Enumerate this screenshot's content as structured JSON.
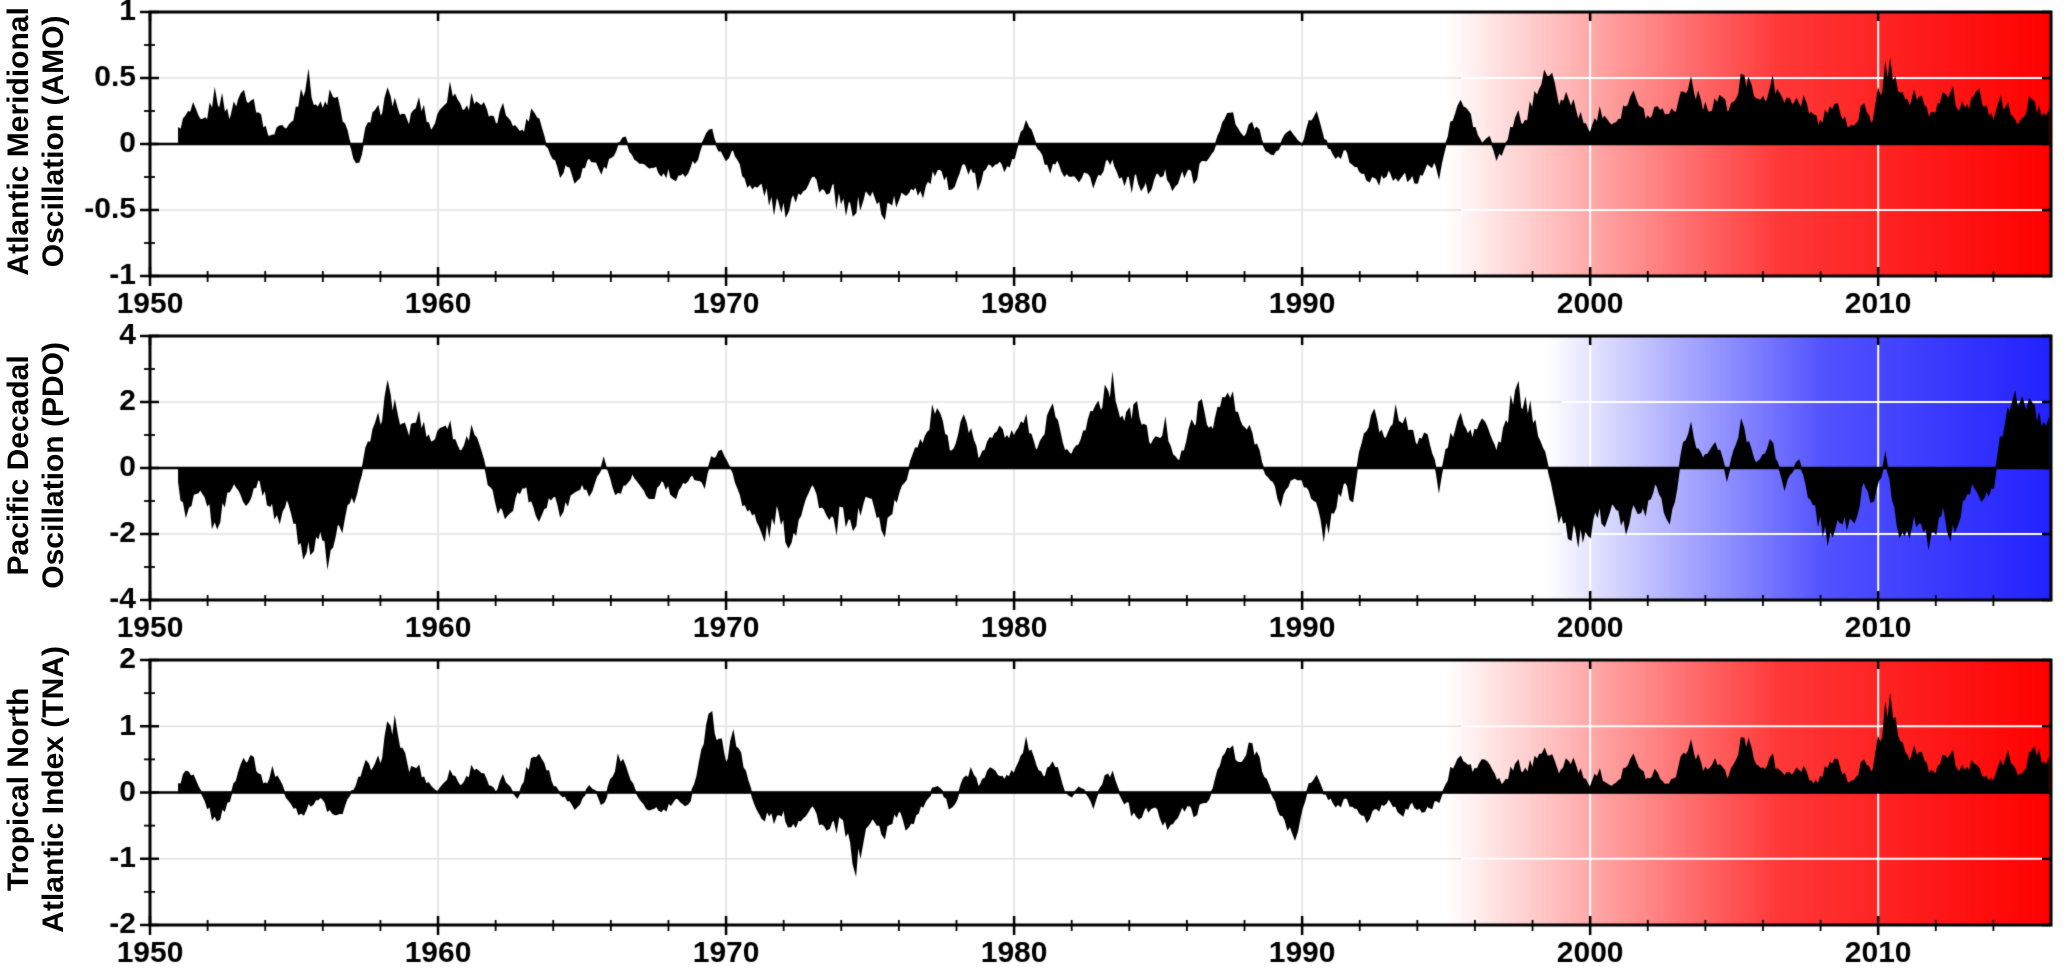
{
  "figure": {
    "background": "#ffffff",
    "axis_color": "#000000",
    "series_color": "#000000",
    "grid_color_light": "#e2e2e2",
    "grid_color_on_shade": "#ffffff"
  },
  "chart_data": [
    {
      "type": "area",
      "title": "",
      "ylabel": "Atlantic Meridional Oscillation (AMO)",
      "ylabel_lines": [
        "Atlantic Meridional",
        "Oscillation (AMO)"
      ],
      "xlabel": "",
      "xlim": [
        1950,
        2016
      ],
      "ylim": [
        -1,
        1
      ],
      "xticks": [
        1950,
        1960,
        1970,
        1980,
        1990,
        2000,
        2010
      ],
      "xtick_labels": [
        "1950",
        "1960",
        "1970",
        "1980",
        "1990",
        "2000",
        "2010"
      ],
      "yticks": [
        -1,
        -0.5,
        0,
        0.5,
        1
      ],
      "ytick_labels": [
        "-1",
        "-0.5",
        "0",
        "0.5",
        "1"
      ],
      "minor_x_step": 2,
      "grid": true,
      "legend": "none",
      "fill_color": "#000000",
      "shade": {
        "color": "#ff0000",
        "start": 1995
      },
      "x_start": 1951.0,
      "x_step": 0.25,
      "values": [
        0.1,
        0.2,
        0.25,
        0.15,
        0.2,
        0.35,
        0.3,
        0.2,
        0.3,
        0.4,
        0.35,
        0.25,
        0.1,
        0.05,
        0.15,
        0.1,
        0.2,
        0.4,
        0.45,
        0.3,
        0.25,
        0.35,
        0.3,
        0.15,
        -0.05,
        -0.15,
        0.1,
        0.2,
        0.25,
        0.35,
        0.3,
        0.2,
        0.15,
        0.3,
        0.25,
        0.1,
        0.2,
        0.35,
        0.4,
        0.3,
        0.25,
        0.35,
        0.3,
        0.2,
        0.15,
        0.25,
        0.2,
        0.1,
        0.1,
        0.25,
        0.2,
        0.0,
        -0.1,
        -0.2,
        -0.15,
        -0.25,
        -0.2,
        -0.1,
        -0.15,
        -0.2,
        -0.1,
        0.0,
        0.05,
        -0.1,
        -0.15,
        -0.2,
        -0.15,
        -0.25,
        -0.2,
        -0.3,
        -0.25,
        -0.15,
        -0.1,
        0.05,
        0.1,
        -0.05,
        -0.1,
        -0.05,
        -0.15,
        -0.3,
        -0.35,
        -0.3,
        -0.4,
        -0.45,
        -0.5,
        -0.4,
        -0.35,
        -0.3,
        -0.25,
        -0.3,
        -0.4,
        -0.35,
        -0.45,
        -0.5,
        -0.45,
        -0.4,
        -0.35,
        -0.45,
        -0.5,
        -0.4,
        -0.45,
        -0.35,
        -0.3,
        -0.35,
        -0.3,
        -0.2,
        -0.25,
        -0.3,
        -0.25,
        -0.15,
        -0.2,
        -0.3,
        -0.2,
        -0.15,
        -0.1,
        -0.2,
        -0.1,
        0.1,
        0.15,
        0.0,
        -0.1,
        -0.2,
        -0.15,
        -0.25,
        -0.3,
        -0.25,
        -0.2,
        -0.3,
        -0.2,
        -0.1,
        -0.15,
        -0.25,
        -0.3,
        -0.25,
        -0.35,
        -0.3,
        -0.25,
        -0.2,
        -0.3,
        -0.25,
        -0.2,
        -0.25,
        -0.15,
        -0.1,
        0.0,
        0.15,
        0.25,
        0.1,
        0.05,
        0.15,
        0.1,
        -0.05,
        -0.1,
        0.0,
        0.1,
        0.05,
        0.0,
        0.15,
        0.2,
        0.05,
        -0.05,
        -0.1,
        -0.05,
        -0.15,
        -0.2,
        -0.25,
        -0.3,
        -0.25,
        -0.2,
        -0.25,
        -0.2,
        -0.3,
        -0.25,
        -0.2,
        -0.15,
        -0.2,
        0.0,
        0.2,
        0.3,
        0.25,
        0.1,
        0.0,
        0.05,
        -0.1,
        -0.05,
        0.1,
        0.2,
        0.15,
        0.3,
        0.5,
        0.55,
        0.4,
        0.3,
        0.35,
        0.25,
        0.15,
        0.1,
        0.2,
        0.25,
        0.15,
        0.2,
        0.3,
        0.35,
        0.25,
        0.2,
        0.25,
        0.3,
        0.2,
        0.3,
        0.4,
        0.45,
        0.35,
        0.25,
        0.3,
        0.35,
        0.25,
        0.3,
        0.45,
        0.5,
        0.4,
        0.3,
        0.4,
        0.45,
        0.35,
        0.25,
        0.35,
        0.3,
        0.2,
        0.15,
        0.25,
        0.3,
        0.2,
        0.1,
        0.2,
        0.25,
        0.15,
        0.35,
        0.5,
        0.55,
        0.45,
        0.3,
        0.35,
        0.3,
        0.2,
        0.25,
        0.35,
        0.4,
        0.3,
        0.25,
        0.3,
        0.35,
        0.25,
        0.2,
        0.3,
        0.25,
        0.15,
        0.2,
        0.3,
        0.25,
        0.2
      ]
    },
    {
      "type": "area",
      "title": "",
      "ylabel": "Pacific Decadal Oscillation (PDO)",
      "ylabel_lines": [
        "Pacific Decadal",
        "Oscillation (PDO)"
      ],
      "xlabel": "",
      "xlim": [
        1950,
        2016
      ],
      "ylim": [
        -4,
        4
      ],
      "xticks": [
        1950,
        1960,
        1970,
        1980,
        1990,
        2000,
        2010
      ],
      "xtick_labels": [
        "1950",
        "1960",
        "1970",
        "1980",
        "1990",
        "2000",
        "2010"
      ],
      "yticks": [
        -4,
        -2,
        0,
        2,
        4
      ],
      "ytick_labels": [
        "-4",
        "-2",
        "0",
        "2",
        "4"
      ],
      "minor_x_step": 2,
      "grid": true,
      "legend": "none",
      "fill_color": "#000000",
      "shade": {
        "color": "#2222ff",
        "start": 1998.5
      },
      "x_start": 1951.0,
      "x_step": 0.25,
      "values": [
        -0.5,
        -1.5,
        -1.0,
        -0.8,
        -1.0,
        -1.8,
        -1.2,
        -0.6,
        -0.5,
        -1.0,
        -0.8,
        -0.3,
        -0.8,
        -1.2,
        -1.5,
        -1.0,
        -1.5,
        -2.2,
        -2.5,
        -2.0,
        -2.2,
        -2.8,
        -2.0,
        -1.5,
        -1.0,
        -0.5,
        0.5,
        1.0,
        1.5,
        2.2,
        1.8,
        1.2,
        1.0,
        1.5,
        1.2,
        0.8,
        1.0,
        1.5,
        1.0,
        0.5,
        0.8,
        1.2,
        0.5,
        -0.5,
        -1.0,
        -1.5,
        -1.2,
        -0.8,
        -0.5,
        -1.0,
        -1.5,
        -1.0,
        -0.8,
        -1.2,
        -1.0,
        -0.6,
        -0.5,
        -0.8,
        -0.3,
        0.2,
        -0.3,
        -0.8,
        -0.5,
        -0.2,
        -0.5,
        -1.0,
        -0.8,
        -0.4,
        -0.6,
        -1.0,
        -0.5,
        -0.2,
        -0.3,
        -0.5,
        0.3,
        0.5,
        0.3,
        -0.2,
        -0.8,
        -1.2,
        -1.5,
        -2.0,
        -1.8,
        -1.2,
        -1.8,
        -2.2,
        -1.5,
        -0.8,
        -0.5,
        -1.0,
        -1.5,
        -1.8,
        -1.2,
        -1.8,
        -1.5,
        -1.0,
        -0.8,
        -1.5,
        -1.8,
        -1.2,
        -0.8,
        -0.3,
        0.5,
        0.8,
        1.0,
        1.8,
        1.2,
        0.6,
        0.8,
        1.5,
        1.0,
        0.3,
        0.5,
        1.0,
        1.5,
        0.8,
        1.0,
        1.5,
        1.2,
        0.5,
        0.8,
        1.8,
        1.2,
        0.5,
        0.3,
        0.8,
        1.2,
        1.8,
        2.0,
        2.5,
        2.2,
        1.5,
        1.5,
        1.8,
        1.2,
        0.8,
        0.8,
        1.2,
        0.5,
        0.2,
        0.8,
        1.5,
        1.8,
        1.2,
        1.5,
        2.0,
        2.2,
        1.5,
        1.2,
        1.0,
        0.5,
        -0.2,
        -0.5,
        -1.0,
        -0.5,
        -0.3,
        -0.3,
        -0.8,
        -1.2,
        -1.8,
        -1.5,
        -0.8,
        -0.5,
        -1.0,
        0.5,
        1.2,
        1.5,
        1.0,
        1.0,
        1.8,
        1.5,
        1.0,
        0.8,
        1.0,
        0.5,
        -0.5,
        0.5,
        1.0,
        1.5,
        1.0,
        1.0,
        1.5,
        1.0,
        0.5,
        1.0,
        1.8,
        2.2,
        1.8,
        1.5,
        1.0,
        0.2,
        -1.0,
        -1.5,
        -2.0,
        -1.8,
        -2.2,
        -1.8,
        -1.2,
        -1.5,
        -1.0,
        -1.2,
        -1.8,
        -1.2,
        -1.5,
        -1.0,
        -0.5,
        -0.8,
        -1.8,
        -0.5,
        0.8,
        1.2,
        0.5,
        0.3,
        0.8,
        0.5,
        -0.3,
        0.5,
        1.2,
        0.8,
        0.2,
        0.3,
        0.8,
        0.2,
        -0.5,
        -0.2,
        0.3,
        -0.5,
        -1.2,
        -1.5,
        -2.0,
        -1.8,
        -1.5,
        -1.8,
        -1.2,
        -0.5,
        -1.0,
        -0.5,
        0.3,
        -0.8,
        -1.8,
        -2.0,
        -1.5,
        -2.0,
        -2.2,
        -1.8,
        -1.2,
        -2.0,
        -1.5,
        -1.0,
        -0.5,
        -1.0,
        -0.8,
        -0.5,
        0.8,
        1.5,
        2.0,
        2.2,
        1.8,
        1.5,
        1.2
      ]
    },
    {
      "type": "area",
      "title": "",
      "ylabel": "Tropical North Atlantic Index (TNA)",
      "ylabel_lines": [
        "Tropical North",
        "Atlantic Index (TNA)"
      ],
      "xlabel": "",
      "xlim": [
        1950,
        2016
      ],
      "ylim": [
        -2,
        2
      ],
      "xticks": [
        1950,
        1960,
        1970,
        1980,
        1990,
        2000,
        2010
      ],
      "xtick_labels": [
        "1950",
        "1960",
        "1970",
        "1980",
        "1990",
        "2000",
        "2010"
      ],
      "yticks": [
        -2,
        -1,
        0,
        1,
        2
      ],
      "ytick_labels": [
        "-2",
        "-1",
        "0",
        "1",
        "2"
      ],
      "minor_x_step": 2,
      "grid": true,
      "legend": "none",
      "fill_color": "#000000",
      "shade": {
        "color": "#ff0000",
        "start": 1995
      },
      "x_start": 1951.0,
      "x_step": 0.25,
      "values": [
        0.1,
        0.3,
        0.2,
        0.0,
        -0.2,
        -0.4,
        -0.3,
        -0.1,
        0.2,
        0.5,
        0.6,
        0.3,
        0.1,
        0.3,
        0.2,
        -0.1,
        -0.2,
        -0.3,
        -0.2,
        -0.1,
        -0.1,
        -0.3,
        -0.4,
        -0.2,
        0.0,
        0.2,
        0.4,
        0.3,
        0.5,
        0.9,
        1.0,
        0.6,
        0.3,
        0.4,
        0.2,
        0.1,
        0.0,
        0.2,
        0.3,
        0.1,
        0.2,
        0.4,
        0.3,
        0.1,
        0.0,
        0.2,
        0.1,
        -0.1,
        0.2,
        0.5,
        0.6,
        0.4,
        0.1,
        0.0,
        -0.1,
        -0.2,
        -0.1,
        0.1,
        0.0,
        -0.2,
        0.2,
        0.5,
        0.4,
        0.1,
        -0.1,
        -0.3,
        -0.2,
        -0.3,
        -0.2,
        -0.1,
        -0.2,
        -0.1,
        0.3,
        0.8,
        1.15,
        0.8,
        0.5,
        0.8,
        0.6,
        0.2,
        -0.2,
        -0.4,
        -0.3,
        -0.4,
        -0.3,
        -0.5,
        -0.4,
        -0.3,
        -0.2,
        -0.4,
        -0.6,
        -0.5,
        -0.4,
        -0.7,
        -1.05,
        -0.7,
        -0.4,
        -0.5,
        -0.6,
        -0.4,
        -0.3,
        -0.5,
        -0.4,
        -0.2,
        -0.1,
        0.1,
        0.0,
        -0.2,
        -0.1,
        0.2,
        0.3,
        0.1,
        0.2,
        0.4,
        0.3,
        0.2,
        0.3,
        0.6,
        0.7,
        0.4,
        0.2,
        0.4,
        0.3,
        0.0,
        -0.1,
        0.1,
        0.0,
        -0.2,
        0.1,
        0.3,
        0.2,
        -0.1,
        -0.2,
        -0.4,
        -0.3,
        -0.2,
        -0.3,
        -0.5,
        -0.4,
        -0.3,
        -0.2,
        -0.3,
        -0.2,
        -0.1,
        0.2,
        0.5,
        0.7,
        0.4,
        0.5,
        0.7,
        0.5,
        0.2,
        -0.1,
        -0.3,
        -0.5,
        -0.7,
        -0.2,
        0.1,
        0.2,
        0.0,
        -0.1,
        -0.2,
        -0.1,
        -0.2,
        -0.3,
        -0.4,
        -0.3,
        -0.2,
        -0.1,
        -0.2,
        -0.3,
        -0.2,
        -0.2,
        -0.3,
        -0.2,
        -0.1,
        0.1,
        0.4,
        0.5,
        0.4,
        0.3,
        0.5,
        0.4,
        0.2,
        0.1,
        0.3,
        0.4,
        0.3,
        0.4,
        0.7,
        0.6,
        0.4,
        0.3,
        0.5,
        0.4,
        0.2,
        0.1,
        0.3,
        0.2,
        0.1,
        0.2,
        0.4,
        0.5,
        0.3,
        0.2,
        0.3,
        0.2,
        0.1,
        0.3,
        0.6,
        0.7,
        0.5,
        0.3,
        0.5,
        0.4,
        0.2,
        0.4,
        0.7,
        0.8,
        0.5,
        0.3,
        0.5,
        0.4,
        0.3,
        0.2,
        0.4,
        0.3,
        0.1,
        0.2,
        0.4,
        0.5,
        0.3,
        0.1,
        0.3,
        0.4,
        0.3,
        0.7,
        1.1,
        1.3,
        0.9,
        0.5,
        0.6,
        0.5,
        0.3,
        0.3,
        0.5,
        0.6,
        0.4,
        0.3,
        0.4,
        0.3,
        0.2,
        0.2,
        0.4,
        0.5,
        0.3,
        0.3,
        0.5,
        0.6,
        0.4
      ]
    }
  ]
}
